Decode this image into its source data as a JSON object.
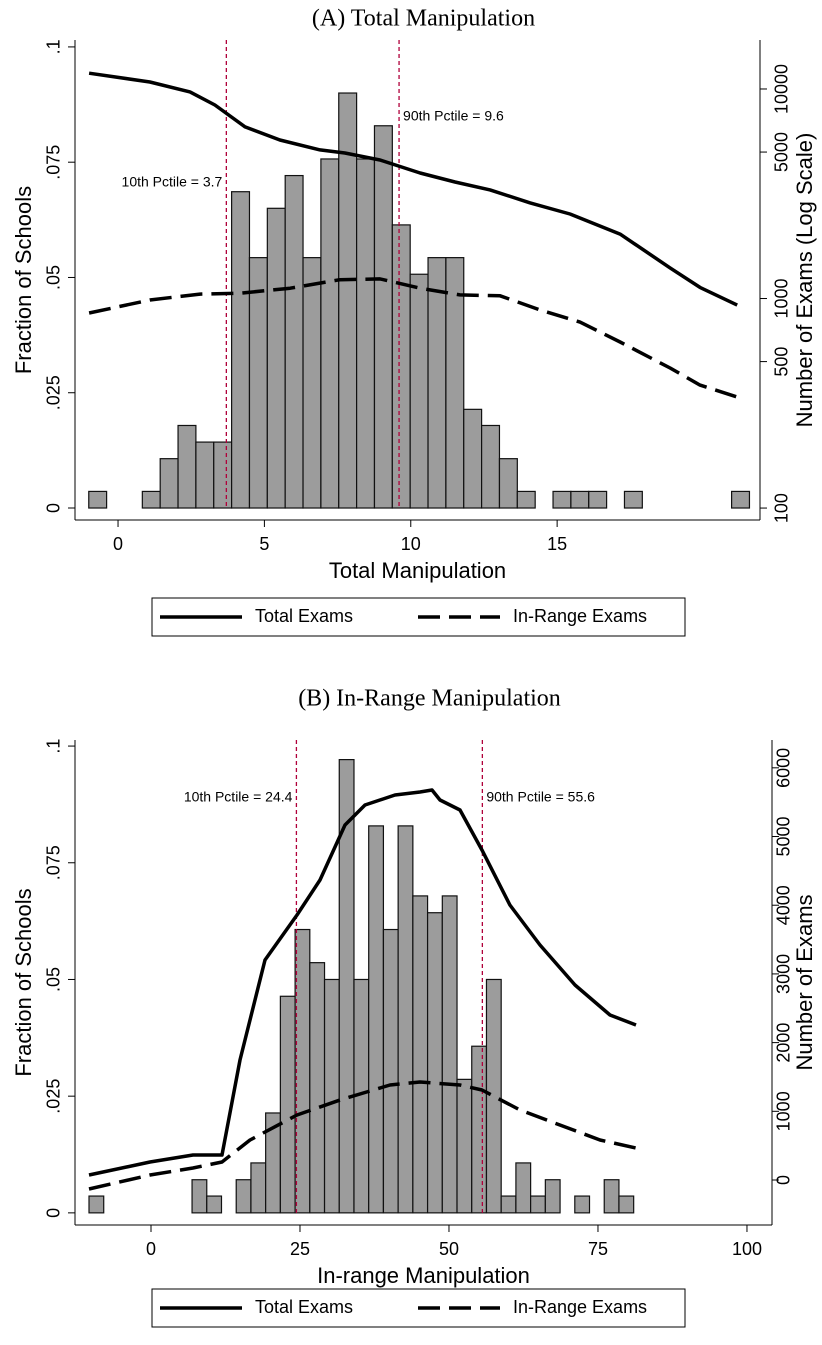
{
  "chart_data": [
    {
      "type": "histogram",
      "title": "(A) Total Manipulation",
      "xlabel": "Total Manipulation",
      "ylabel": "Fraction of Schools",
      "y2label": "Number of Exams (Log Scale)",
      "bins": [
        -1,
        -0.39,
        0.22,
        0.83,
        1.44,
        2.05,
        2.66,
        3.27,
        3.88,
        4.49,
        5.1,
        5.71,
        6.32,
        6.93,
        7.54,
        8.15,
        8.76,
        9.37,
        9.98,
        10.59,
        11.2,
        11.81,
        12.42,
        13.03,
        13.64,
        14.25,
        14.86,
        15.47,
        16.08,
        16.69,
        17.3,
        17.91,
        18.52,
        19.13,
        19.74,
        20.35,
        20.96,
        21.57
      ],
      "values": [
        0.0036,
        0,
        0,
        0.0036,
        0.0107,
        0.0179,
        0.0143,
        0.0143,
        0.0686,
        0.0543,
        0.065,
        0.0721,
        0.0543,
        0.0757,
        0.09,
        0.0757,
        0.0829,
        0.0614,
        0.0507,
        0.0543,
        0.0543,
        0.0214,
        0.0179,
        0.0107,
        0.0036,
        0,
        0.0036,
        0.0036,
        0.0036,
        0,
        0.0036,
        0,
        0,
        0,
        0,
        0,
        0.0036
      ],
      "bar_color": "#9c9c9c",
      "bar_edge": "#111111",
      "series": [
        {
          "name": "Total Exams",
          "color": "#000000",
          "style": "solid",
          "axis": "y2",
          "x": [
            -0.99,
            1.09,
            2.46,
            3.31,
            4.34,
            5.53,
            6.9,
            7.75,
            8.95,
            10.32,
            11.51,
            12.71,
            14.08,
            15.44,
            17.15,
            18.86,
            19.88,
            21.15
          ],
          "values": [
            11900,
            10800,
            9680,
            8390,
            6590,
            5710,
            5120,
            4950,
            4580,
            3970,
            3600,
            3300,
            2860,
            2530,
            2030,
            1400,
            1130,
            930
          ]
        },
        {
          "name": "In-Range Exams",
          "color": "#000000",
          "style": "dashed",
          "axis": "y2",
          "x": [
            -0.99,
            1.09,
            2.8,
            4.17,
            5.88,
            7.58,
            8.95,
            10.32,
            11.68,
            13.05,
            14.42,
            15.78,
            17.15,
            18.86,
            19.88,
            21.15
          ],
          "values": [
            853,
            984,
            1050,
            1060,
            1120,
            1230,
            1240,
            1120,
            1040,
            1030,
            881,
            772,
            620,
            466,
            386,
            339
          ]
        }
      ],
      "xlim": [
        -1.47,
        21.93
      ],
      "xticks": [
        0,
        5,
        10,
        15
      ],
      "ylim": [
        -0.0026,
        0.1015
      ],
      "yticks": [
        0,
        {
          "value": 0.025,
          "label": ".025"
        },
        {
          "value": 0.05,
          "label": ".05"
        },
        {
          "value": 0.075,
          "label": ".075"
        },
        {
          "value": 0.1,
          "label": ".1"
        }
      ],
      "y2lim": [
        87.7,
        17130
      ],
      "y2ticks": [
        100,
        500,
        1000,
        5000,
        10000
      ],
      "y2scale": "log",
      "annotations": [
        {
          "text": "10th Pctile = 3.7",
          "x": 3.7
        },
        {
          "text": "90th Pctile = 9.6",
          "x": 9.6
        }
      ],
      "annotation_color": "#b0003a",
      "legend": "bottom"
    },
    {
      "type": "histogram",
      "title": "(B) In-Range Manipulation",
      "xlabel": "In-range Manipulation",
      "ylabel": "Fraction of Schools",
      "y2label": "Number of Exams",
      "bins": [
        -10.4,
        -7.93,
        -5.46,
        -2.99,
        -0.52,
        1.95,
        4.42,
        6.89,
        9.36,
        11.83,
        14.3,
        16.77,
        19.24,
        21.71,
        24.18,
        26.65,
        29.12,
        31.59,
        34.06,
        36.53,
        39.0,
        41.47,
        43.94,
        46.41,
        48.88,
        51.35,
        53.82,
        56.29,
        58.76,
        61.23,
        63.7,
        66.17,
        68.64,
        71.11,
        73.58,
        76.05,
        78.52,
        80.99
      ],
      "values": [
        0.0036,
        0,
        0,
        0,
        0,
        0,
        0,
        0.0071,
        0.0036,
        0,
        0.0071,
        0.0107,
        0.0214,
        0.0464,
        0.0607,
        0.0536,
        0.05,
        0.0971,
        0.05,
        0.0829,
        0.0607,
        0.0829,
        0.0679,
        0.0643,
        0.0679,
        0.0286,
        0.0357,
        0.05,
        0.0036,
        0.0107,
        0.0036,
        0.0071,
        0,
        0.0036,
        0,
        0.0071,
        0.0036
      ],
      "bar_color": "#9c9c9c",
      "bar_edge": "#111111",
      "series": [
        {
          "name": "Total Exams",
          "color": "#000000",
          "style": "solid",
          "axis": "y2",
          "x": [
            -10.4,
            -0.17,
            7.05,
            11.91,
            14.93,
            19.13,
            24.5,
            28.36,
            32.55,
            35.91,
            40.94,
            45.13,
            47.15,
            48.49,
            51.85,
            55.54,
            60.23,
            65.27,
            71.14,
            77.01,
            81.38
          ],
          "values": [
            73,
            262,
            364,
            364,
            1747,
            3202,
            3857,
            4367,
            5167,
            5459,
            5604,
            5648,
            5677,
            5531,
            5386,
            4803,
            4003,
            3421,
            2838,
            2402,
            2256
          ]
        },
        {
          "name": "In-Range Exams",
          "color": "#000000",
          "style": "dashed",
          "axis": "y2",
          "x": [
            -10.4,
            -0.17,
            7.05,
            11.91,
            16.61,
            24.5,
            31.71,
            40.1,
            45.13,
            51.85,
            55.54,
            61.91,
            68.62,
            75.34,
            81.38
          ],
          "values": [
            -131,
            73,
            175,
            262,
            582,
            946,
            1164,
            1383,
            1426,
            1383,
            1310,
            1019,
            801,
            582,
            466
          ]
        }
      ],
      "xlim": [
        -12.75,
        104.2
      ],
      "xticks": [
        0,
        25,
        50,
        75,
        100
      ],
      "ylim": [
        -0.0026,
        0.1013
      ],
      "yticks": [
        0,
        {
          "value": 0.025,
          "label": ".025"
        },
        {
          "value": 0.05,
          "label": ".05"
        },
        {
          "value": 0.075,
          "label": ".075"
        },
        {
          "value": 0.1,
          "label": ".1"
        }
      ],
      "y2lim": [
        -655,
        6405
      ],
      "y2ticks": [
        0,
        1000,
        2000,
        3000,
        4000,
        5000,
        6000
      ],
      "y2scale": "linear",
      "annotations": [
        {
          "text": "10th Pctile = 24.4",
          "x": 24.4
        },
        {
          "text": "90th Pctile = 55.6",
          "x": 55.6
        }
      ],
      "annotation_color": "#b0003a",
      "legend": "bottom"
    }
  ]
}
